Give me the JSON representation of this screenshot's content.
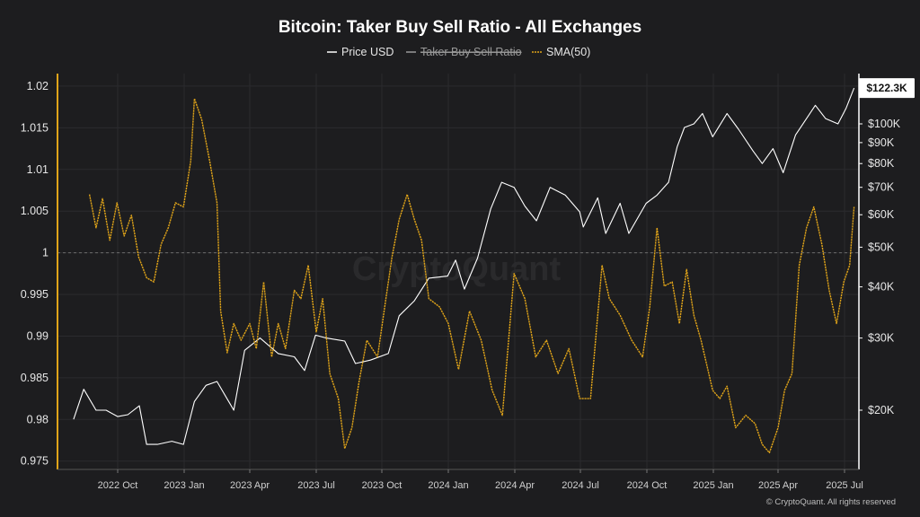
{
  "chart_data": {
    "type": "line",
    "title": "Bitcoin: Taker Buy Sell Ratio - All Exchanges",
    "legend": {
      "placement": "top-center",
      "items": [
        {
          "label": "Price USD",
          "color": "#ffffff",
          "hidden": false
        },
        {
          "label": "Taker Buy Sell Ratio",
          "color": "#9a9a9a",
          "hidden": true
        },
        {
          "label": "SMA(50)",
          "color": "#e0a419",
          "hidden": false
        }
      ]
    },
    "x_ticks": [
      "2022 Oct",
      "2023 Jan",
      "2023 Apr",
      "2023 Jul",
      "2023 Oct",
      "2024 Jan",
      "2024 Apr",
      "2024 Jul",
      "2024 Oct",
      "2025 Jan",
      "2025 Apr",
      "2025 Jul"
    ],
    "left_axis": {
      "ylim": [
        0.974,
        1.0215
      ],
      "ticks": [
        "1.02",
        "1.015",
        "1.01",
        "1.005",
        "1",
        "0.995",
        "0.99",
        "0.985",
        "0.98",
        "0.975"
      ],
      "reference_line": 1
    },
    "right_axis": {
      "scale": "log",
      "ticks": [
        "$100K",
        "$90K",
        "$80K",
        "$70K",
        "$60K",
        "$50K",
        "$40K",
        "$30K",
        "$20K"
      ],
      "last_value_label": "$122.3K"
    },
    "watermark": "CryptoQuant",
    "footer": "© CryptoQuant. All rights reserved",
    "grid": true,
    "series": [
      {
        "name": "Price USD",
        "axis": "right",
        "color": "#ffffff",
        "points": [
          [
            "2022-08-01",
            19000
          ],
          [
            "2022-08-15",
            22500
          ],
          [
            "2022-09-01",
            20000
          ],
          [
            "2022-09-15",
            20000
          ],
          [
            "2022-10-01",
            19300
          ],
          [
            "2022-10-15",
            19500
          ],
          [
            "2022-10-31",
            20500
          ],
          [
            "2022-11-10",
            16500
          ],
          [
            "2022-11-25",
            16500
          ],
          [
            "2022-12-15",
            16800
          ],
          [
            "2022-12-31",
            16500
          ],
          [
            "2023-01-15",
            21000
          ],
          [
            "2023-01-31",
            23000
          ],
          [
            "2023-02-15",
            23500
          ],
          [
            "2023-03-10",
            20000
          ],
          [
            "2023-03-25",
            28000
          ],
          [
            "2023-04-15",
            30000
          ],
          [
            "2023-05-10",
            27500
          ],
          [
            "2023-06-01",
            27000
          ],
          [
            "2023-06-15",
            25000
          ],
          [
            "2023-06-30",
            30500
          ],
          [
            "2023-07-15",
            30000
          ],
          [
            "2023-08-10",
            29500
          ],
          [
            "2023-08-25",
            26000
          ],
          [
            "2023-09-15",
            26500
          ],
          [
            "2023-10-10",
            27500
          ],
          [
            "2023-10-25",
            34000
          ],
          [
            "2023-11-15",
            37000
          ],
          [
            "2023-12-05",
            42000
          ],
          [
            "2023-12-31",
            42500
          ],
          [
            "2024-01-11",
            46500
          ],
          [
            "2024-01-23",
            39500
          ],
          [
            "2024-02-10",
            47000
          ],
          [
            "2024-02-28",
            62000
          ],
          [
            "2024-03-14",
            72000
          ],
          [
            "2024-03-31",
            70000
          ],
          [
            "2024-04-15",
            63000
          ],
          [
            "2024-05-01",
            58000
          ],
          [
            "2024-05-20",
            70000
          ],
          [
            "2024-06-10",
            67000
          ],
          [
            "2024-06-30",
            61000
          ],
          [
            "2024-07-05",
            56000
          ],
          [
            "2024-07-25",
            66000
          ],
          [
            "2024-08-05",
            54000
          ],
          [
            "2024-08-25",
            64000
          ],
          [
            "2024-09-06",
            54000
          ],
          [
            "2024-09-30",
            64000
          ],
          [
            "2024-10-15",
            67000
          ],
          [
            "2024-10-31",
            72000
          ],
          [
            "2024-11-12",
            88000
          ],
          [
            "2024-11-22",
            98000
          ],
          [
            "2024-12-05",
            100000
          ],
          [
            "2024-12-17",
            106000
          ],
          [
            "2024-12-31",
            93000
          ],
          [
            "2025-01-20",
            106000
          ],
          [
            "2025-02-05",
            97000
          ],
          [
            "2025-02-25",
            86000
          ],
          [
            "2025-03-10",
            80000
          ],
          [
            "2025-03-25",
            87000
          ],
          [
            "2025-04-08",
            76000
          ],
          [
            "2025-04-25",
            94000
          ],
          [
            "2025-05-10",
            103000
          ],
          [
            "2025-05-22",
            111000
          ],
          [
            "2025-06-05",
            103000
          ],
          [
            "2025-06-22",
            100000
          ],
          [
            "2025-07-03",
            109000
          ],
          [
            "2025-07-14",
            122300
          ]
        ]
      },
      {
        "name": "SMA(50)",
        "axis": "left",
        "color": "#e0a419",
        "points": [
          [
            "2022-08-23",
            1.007
          ],
          [
            "2022-09-01",
            1.003
          ],
          [
            "2022-09-10",
            1.0065
          ],
          [
            "2022-09-20",
            1.0015
          ],
          [
            "2022-09-30",
            1.006
          ],
          [
            "2022-10-10",
            1.002
          ],
          [
            "2022-10-20",
            1.0045
          ],
          [
            "2022-10-30",
            0.9995
          ],
          [
            "2022-11-10",
            0.997
          ],
          [
            "2022-11-20",
            0.9965
          ],
          [
            "2022-11-30",
            1.001
          ],
          [
            "2022-12-10",
            1.003
          ],
          [
            "2022-12-20",
            1.006
          ],
          [
            "2022-12-31",
            1.0055
          ],
          [
            "2023-01-10",
            1.011
          ],
          [
            "2023-01-15",
            1.0185
          ],
          [
            "2023-01-25",
            1.016
          ],
          [
            "2023-02-05",
            1.011
          ],
          [
            "2023-02-15",
            1.006
          ],
          [
            "2023-02-20",
            0.993
          ],
          [
            "2023-03-01",
            0.988
          ],
          [
            "2023-03-10",
            0.9915
          ],
          [
            "2023-03-20",
            0.9895
          ],
          [
            "2023-04-01",
            0.9915
          ],
          [
            "2023-04-10",
            0.9885
          ],
          [
            "2023-04-20",
            0.9965
          ],
          [
            "2023-05-01",
            0.9875
          ],
          [
            "2023-05-10",
            0.9915
          ],
          [
            "2023-05-20",
            0.9885
          ],
          [
            "2023-06-01",
            0.9955
          ],
          [
            "2023-06-10",
            0.9945
          ],
          [
            "2023-06-20",
            0.9985
          ],
          [
            "2023-07-01",
            0.9905
          ],
          [
            "2023-07-10",
            0.9945
          ],
          [
            "2023-07-20",
            0.9855
          ],
          [
            "2023-08-01",
            0.9825
          ],
          [
            "2023-08-10",
            0.9765
          ],
          [
            "2023-08-20",
            0.979
          ],
          [
            "2023-08-30",
            0.9845
          ],
          [
            "2023-09-10",
            0.9895
          ],
          [
            "2023-09-25",
            0.9875
          ],
          [
            "2023-10-05",
            0.9935
          ],
          [
            "2023-10-15",
            0.9995
          ],
          [
            "2023-10-25",
            1.004
          ],
          [
            "2023-11-05",
            1.007
          ],
          [
            "2023-11-15",
            1.004
          ],
          [
            "2023-11-25",
            1.0015
          ],
          [
            "2023-12-05",
            0.9945
          ],
          [
            "2023-12-20",
            0.9935
          ],
          [
            "2024-01-01",
            0.9915
          ],
          [
            "2024-01-15",
            0.986
          ],
          [
            "2024-01-30",
            0.993
          ],
          [
            "2024-02-15",
            0.9895
          ],
          [
            "2024-03-01",
            0.9835
          ],
          [
            "2024-03-15",
            0.9805
          ],
          [
            "2024-03-31",
            0.9975
          ],
          [
            "2024-04-15",
            0.9945
          ],
          [
            "2024-04-30",
            0.9875
          ],
          [
            "2024-05-15",
            0.9895
          ],
          [
            "2024-05-31",
            0.9855
          ],
          [
            "2024-06-15",
            0.9885
          ],
          [
            "2024-06-30",
            0.9825
          ],
          [
            "2024-07-15",
            0.9825
          ],
          [
            "2024-07-31",
            0.9985
          ],
          [
            "2024-08-10",
            0.9945
          ],
          [
            "2024-08-25",
            0.9925
          ],
          [
            "2024-09-10",
            0.9895
          ],
          [
            "2024-09-25",
            0.9875
          ],
          [
            "2024-10-05",
            0.9935
          ],
          [
            "2024-10-15",
            1.003
          ],
          [
            "2024-10-25",
            0.996
          ],
          [
            "2024-11-05",
            0.9965
          ],
          [
            "2024-11-15",
            0.9915
          ],
          [
            "2024-11-25",
            0.998
          ],
          [
            "2024-12-05",
            0.9925
          ],
          [
            "2024-12-15",
            0.9895
          ],
          [
            "2024-12-31",
            0.9835
          ],
          [
            "2025-01-10",
            0.9825
          ],
          [
            "2025-01-20",
            0.984
          ],
          [
            "2025-02-01",
            0.979
          ],
          [
            "2025-02-15",
            0.9805
          ],
          [
            "2025-02-28",
            0.9795
          ],
          [
            "2025-03-10",
            0.977
          ],
          [
            "2025-03-20",
            0.976
          ],
          [
            "2025-04-01",
            0.979
          ],
          [
            "2025-04-10",
            0.9835
          ],
          [
            "2025-04-20",
            0.9855
          ],
          [
            "2025-04-30",
            0.9985
          ],
          [
            "2025-05-10",
            1.003
          ],
          [
            "2025-05-20",
            1.0055
          ],
          [
            "2025-05-31",
            1.001
          ],
          [
            "2025-06-10",
            0.9955
          ],
          [
            "2025-06-20",
            0.9915
          ],
          [
            "2025-06-30",
            0.9965
          ],
          [
            "2025-07-08",
            0.9985
          ],
          [
            "2025-07-14",
            1.0055
          ]
        ]
      }
    ]
  }
}
